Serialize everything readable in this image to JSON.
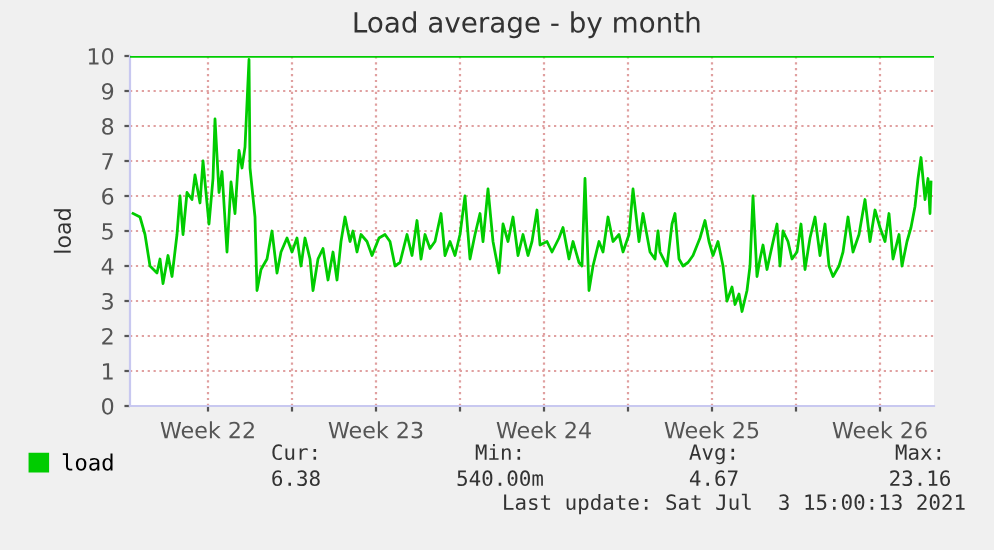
{
  "chart_data": {
    "type": "line",
    "title": "Load average - by month",
    "ylabel": "load",
    "x": [
      "2021-05-31T09:00",
      "2021-05-31T16:00",
      "2021-05-31T21:00",
      "2021-06-01T02:00",
      "2021-06-01T09:00",
      "2021-06-01T12:00",
      "2021-06-01T15:00",
      "2021-06-01T20:00",
      "2021-06-02T00:00",
      "2021-06-02T05:00",
      "2021-06-02T08:00",
      "2021-06-02T11:00",
      "2021-06-02T15:00",
      "2021-06-02T20:00",
      "2021-06-02T23:00",
      "2021-06-03T04:00",
      "2021-06-03T07:00",
      "2021-06-03T13:00",
      "2021-06-03T17:00",
      "2021-06-03T19:00",
      "2021-06-03T23:00",
      "2021-06-04T02:00",
      "2021-06-04T07:00",
      "2021-06-04T11:00",
      "2021-06-04T15:00",
      "2021-06-04T19:00",
      "2021-06-04T22:00",
      "2021-06-05T01:00",
      "2021-06-05T05:00",
      "2021-06-05T06:00",
      "2021-06-05T11:00",
      "2021-06-05T13:00",
      "2021-06-05T17:00",
      "2021-06-05T23:00",
      "2021-06-06T04:00",
      "2021-06-06T09:00",
      "2021-06-06T13:00",
      "2021-06-06T19:00",
      "2021-06-07T00:00",
      "2021-06-07T05:00",
      "2021-06-07T09:00",
      "2021-06-07T13:00",
      "2021-06-07T18:00",
      "2021-06-07T21:00",
      "2021-06-08T02:00",
      "2021-06-08T07:00",
      "2021-06-08T12:00",
      "2021-06-08T17:00",
      "2021-06-08T21:00",
      "2021-06-09T01:00",
      "2021-06-09T05:00",
      "2021-06-09T10:00",
      "2021-06-09T13:00",
      "2021-06-09T17:00",
      "2021-06-09T21:00",
      "2021-06-10T03:00",
      "2021-06-10T08:00",
      "2021-06-10T15:00",
      "2021-06-10T21:00",
      "2021-06-11T02:00",
      "2021-06-11T07:00",
      "2021-06-11T12:00",
      "2021-06-11T19:00",
      "2021-06-12T00:00",
      "2021-06-12T05:00",
      "2021-06-12T09:00",
      "2021-06-12T13:00",
      "2021-06-12T18:00",
      "2021-06-12T23:00",
      "2021-06-13T05:00",
      "2021-06-13T09:00",
      "2021-06-13T14:00",
      "2021-06-13T19:00",
      "2021-06-14T00:00",
      "2021-06-14T05:00",
      "2021-06-14T10:00",
      "2021-06-14T15:00",
      "2021-06-14T20:00",
      "2021-06-14T23:00",
      "2021-06-15T04:00",
      "2021-06-15T09:00",
      "2021-06-15T15:00",
      "2021-06-15T19:00",
      "2021-06-16T00:00",
      "2021-06-16T05:00",
      "2021-06-16T10:00",
      "2021-06-16T15:00",
      "2021-06-16T20:00",
      "2021-06-17T00:00",
      "2021-06-17T05:00",
      "2021-06-17T08:00",
      "2021-06-17T15:00",
      "2021-06-17T20:00",
      "2021-06-18T03:00",
      "2021-06-18T07:00",
      "2021-06-18T13:00",
      "2021-06-18T17:00",
      "2021-06-18T23:00",
      "2021-06-19T02:00",
      "2021-06-19T05:00",
      "2021-06-19T09:00",
      "2021-06-19T13:00",
      "2021-06-19T19:00",
      "2021-06-19T23:00",
      "2021-06-20T04:00",
      "2021-06-20T09:00",
      "2021-06-20T15:00",
      "2021-06-20T19:00",
      "2021-06-21T01:00",
      "2021-06-21T05:00",
      "2021-06-21T11:00",
      "2021-06-21T15:00",
      "2021-06-21T22:00",
      "2021-06-22T03:00",
      "2021-06-22T06:00",
      "2021-06-22T08:00",
      "2021-06-22T15:00",
      "2021-06-22T20:00",
      "2021-06-22T23:00",
      "2021-06-23T03:00",
      "2021-06-23T07:00",
      "2021-06-23T12:00",
      "2021-06-23T17:00",
      "2021-06-24T00:00",
      "2021-06-24T05:00",
      "2021-06-24T09:00",
      "2021-06-24T13:00",
      "2021-06-24T18:00",
      "2021-06-24T23:00",
      "2021-06-25T03:00",
      "2021-06-25T08:00",
      "2021-06-25T11:00",
      "2021-06-25T15:00",
      "2021-06-25T18:00",
      "2021-06-25T23:00",
      "2021-06-26T02:00",
      "2021-06-26T05:00",
      "2021-06-26T09:00",
      "2021-06-26T12:00",
      "2021-06-26T15:00",
      "2021-06-26T19:00",
      "2021-06-26T22:00",
      "2021-06-27T05:00",
      "2021-06-27T08:00",
      "2021-06-27T11:00",
      "2021-06-27T16:00",
      "2021-06-27T20:00",
      "2021-06-28T01:00",
      "2021-06-28T05:00",
      "2021-06-28T09:00",
      "2021-06-28T14:00",
      "2021-06-28T19:00",
      "2021-06-29T00:00",
      "2021-06-29T05:00",
      "2021-06-29T09:00",
      "2021-06-29T13:00",
      "2021-06-29T19:00",
      "2021-06-29T23:00",
      "2021-06-30T04:00",
      "2021-06-30T09:00",
      "2021-06-30T15:00",
      "2021-06-30T21:00",
      "2021-07-01T02:00",
      "2021-07-01T07:00",
      "2021-07-01T12:00",
      "2021-07-01T17:00",
      "2021-07-01T21:00",
      "2021-07-02T01:00",
      "2021-07-02T07:00",
      "2021-07-02T10:00",
      "2021-07-02T15:00",
      "2021-07-02T19:00",
      "2021-07-02T23:00",
      "2021-07-03T02:00",
      "2021-07-03T05:00",
      "2021-07-03T09:00",
      "2021-07-03T12:00",
      "2021-07-03T14:00",
      "2021-07-03T15:00"
    ],
    "series": [
      {
        "name": "load",
        "color": "#00cc00",
        "values": [
          5.5,
          5.4,
          4.9,
          4.0,
          3.8,
          4.2,
          3.5,
          4.3,
          3.7,
          4.9,
          6.0,
          4.9,
          6.1,
          5.9,
          6.6,
          5.8,
          7.0,
          5.2,
          6.5,
          8.2,
          6.1,
          6.7,
          4.4,
          6.4,
          5.5,
          7.3,
          6.8,
          7.4,
          9.9,
          6.8,
          5.4,
          3.3,
          3.9,
          4.2,
          5.0,
          3.8,
          4.4,
          4.8,
          4.4,
          4.8,
          4.0,
          4.8,
          4.2,
          3.3,
          4.2,
          4.5,
          3.6,
          4.4,
          3.6,
          4.7,
          5.4,
          4.7,
          5.0,
          4.4,
          4.9,
          4.7,
          4.3,
          4.8,
          4.9,
          4.7,
          4.0,
          4.1,
          4.9,
          4.3,
          5.3,
          4.2,
          4.9,
          4.5,
          4.7,
          5.5,
          4.3,
          4.7,
          4.3,
          4.9,
          6.0,
          4.2,
          4.9,
          5.5,
          4.7,
          6.2,
          4.7,
          3.8,
          5.2,
          4.7,
          5.4,
          4.3,
          4.9,
          4.3,
          4.7,
          5.6,
          4.6,
          4.7,
          4.4,
          4.8,
          5.1,
          4.2,
          4.7,
          4.1,
          4.0,
          6.5,
          3.3,
          4.0,
          4.7,
          4.4,
          5.4,
          4.7,
          4.9,
          4.4,
          4.9,
          6.2,
          4.7,
          5.5,
          4.4,
          4.2,
          5.0,
          4.4,
          4.0,
          5.2,
          5.5,
          4.2,
          4.0,
          4.1,
          4.3,
          4.8,
          5.3,
          4.7,
          4.3,
          4.7,
          4.0,
          3.0,
          3.4,
          2.9,
          3.2,
          2.7,
          3.3,
          4.0,
          6.0,
          3.7,
          4.2,
          4.6,
          3.9,
          4.3,
          5.2,
          4.0,
          5.0,
          4.7,
          4.2,
          4.4,
          5.2,
          3.9,
          4.8,
          5.4,
          4.3,
          5.2,
          4.0,
          3.7,
          4.0,
          4.4,
          5.4,
          4.4,
          4.9,
          5.9,
          4.7,
          5.6,
          5.1,
          4.7,
          5.5,
          4.2,
          4.9,
          4.0,
          4.7,
          5.1,
          5.7,
          6.5,
          7.1,
          5.9,
          6.5,
          5.5,
          6.4
        ]
      }
    ],
    "xlim": [
      "2021-05-31T06:00",
      "2021-07-03T18:00"
    ],
    "xticks": [
      {
        "value": "2021-06-03T12:00",
        "label": "Week 22"
      },
      {
        "value": "2021-06-07T00:00",
        "label": null
      },
      {
        "value": "2021-06-10T12:00",
        "label": "Week 23"
      },
      {
        "value": "2021-06-14T00:00",
        "label": null
      },
      {
        "value": "2021-06-17T12:00",
        "label": "Week 24"
      },
      {
        "value": "2021-06-21T00:00",
        "label": null
      },
      {
        "value": "2021-06-24T12:00",
        "label": "Week 25"
      },
      {
        "value": "2021-06-28T00:00",
        "label": null
      },
      {
        "value": "2021-07-01T12:00",
        "label": "Week 26"
      }
    ],
    "ylim": [
      0,
      10
    ],
    "yticks": [
      0,
      1,
      2,
      3,
      4,
      5,
      6,
      7,
      8,
      9,
      10
    ],
    "grid": true,
    "legend": "bottom left",
    "ref_lines": [
      {
        "axis": "y",
        "value": 10,
        "color": "#00cc00"
      }
    ],
    "annotations": [
      "Cur:",
      "6.38",
      "Min:",
      "540.00m",
      "Avg:",
      "4.67",
      "Max:",
      "23.16",
      "Last update: Sat Jul  3 15:00:13 2021"
    ]
  }
}
